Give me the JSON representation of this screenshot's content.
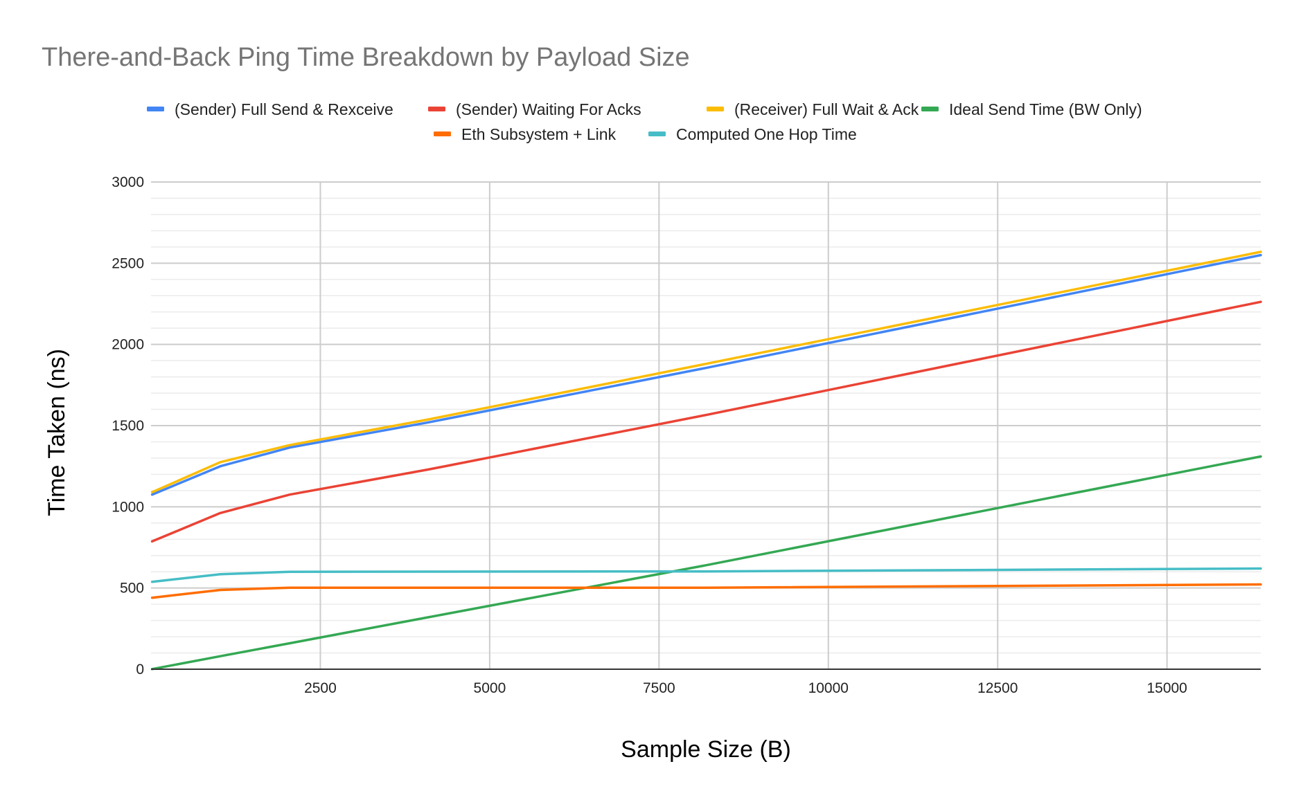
{
  "chart_data": {
    "type": "line",
    "title": "There-and-Back Ping Time Breakdown by Payload Size",
    "xlabel": "Sample Size (B)",
    "ylabel": "Time Taken (ns)",
    "xlim": [
      0,
      16384
    ],
    "ylim": [
      0,
      3000
    ],
    "x_ticks": [
      2500,
      5000,
      7500,
      10000,
      12500,
      15000
    ],
    "x_tick_labels": [
      "2500",
      "5000",
      "7500",
      "10000",
      "12500",
      "15000"
    ],
    "y_ticks": [
      0,
      500,
      1000,
      1500,
      2000,
      2500,
      3000
    ],
    "y_tick_labels": [
      "0",
      "500",
      "1000",
      "1500",
      "2000",
      "2500",
      "3000"
    ],
    "grid": true,
    "legend_position": "top",
    "x": [
      16,
      1024,
      2048,
      4096,
      8192,
      16384
    ],
    "series": [
      {
        "name": "(Sender) Full Send & Rexceive",
        "color": "#4285F4",
        "values": [
          1075,
          1250,
          1365,
          1520,
          1855,
          2550
        ]
      },
      {
        "name": "(Sender) Waiting For Acks",
        "color": "#EA4335",
        "values": [
          787,
          962,
          1075,
          1230,
          1565,
          2262
        ]
      },
      {
        "name": "(Receiver) Full Wait & Ack",
        "color": "#FBBC04",
        "values": [
          1090,
          1275,
          1380,
          1538,
          1880,
          2570
        ]
      },
      {
        "name": "Ideal Send Time (BW Only)",
        "color": "#34A853",
        "values": [
          1,
          80,
          160,
          320,
          640,
          1310
        ]
      },
      {
        "name": "Eth Subsystem + Link",
        "color": "#FF6D01",
        "values": [
          440,
          488,
          502,
          502,
          502,
          522
        ]
      },
      {
        "name": "Computed One Hop Time",
        "color": "#46BDC6",
        "values": [
          538,
          585,
          600,
          601,
          602,
          620
        ]
      }
    ]
  }
}
